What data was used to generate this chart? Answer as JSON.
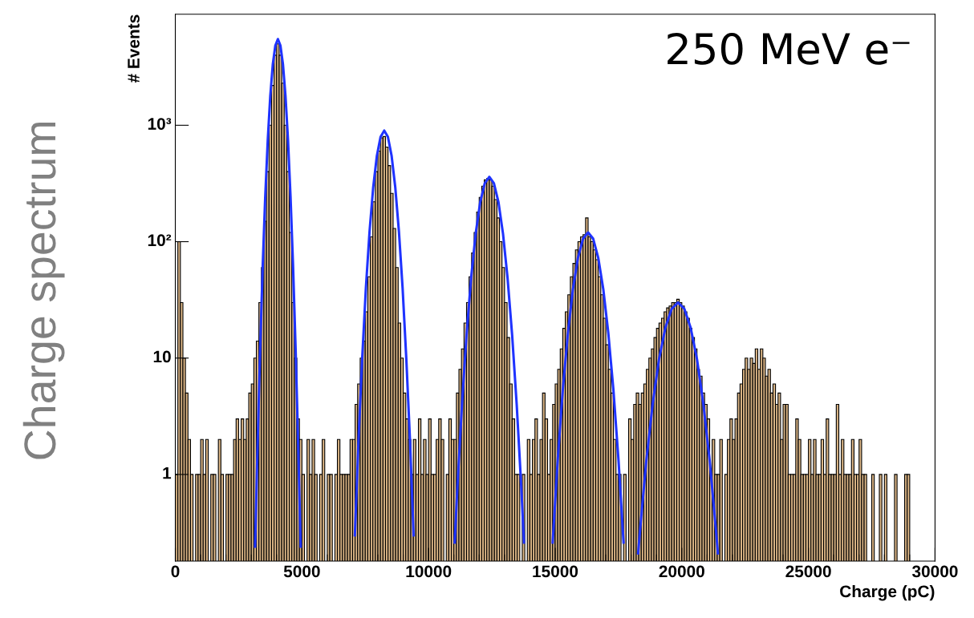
{
  "chart_data": {
    "type": "histogram",
    "title": "Charge spectrum",
    "xlabel": "Charge (pC)",
    "ylabel": "# Events",
    "annotations": [
      "250 MeV e⁻"
    ],
    "bins": [
      0,
      100,
      200,
      300,
      400,
      500,
      600,
      700,
      800,
      900,
      1000,
      1100,
      1200,
      1300,
      1400,
      1500,
      1600,
      1700,
      1800,
      1900,
      2000,
      2100,
      2200,
      2300,
      2400,
      2500,
      2600,
      2700,
      2800,
      2900,
      3000,
      3100,
      3200,
      3300,
      3400,
      3500,
      3600,
      3700,
      3800,
      3900,
      4000,
      4100,
      4200,
      4300,
      4400,
      4500,
      4600,
      4700,
      4800,
      4900,
      5000,
      5100,
      5200,
      5300,
      5400,
      5500,
      5600,
      5700,
      5800,
      5900,
      6000,
      6100,
      6200,
      6300,
      6400,
      6500,
      6600,
      6700,
      6800,
      6900,
      7000,
      7100,
      7200,
      7300,
      7400,
      7500,
      7600,
      7700,
      7800,
      7900,
      8000,
      8100,
      8200,
      8300,
      8400,
      8500,
      8600,
      8700,
      8800,
      8900,
      9000,
      9100,
      9200,
      9300,
      9400,
      9500,
      9600,
      9700,
      9800,
      9900,
      10000,
      10100,
      10200,
      10300,
      10400,
      10500,
      10600,
      10700,
      10800,
      10900,
      11000,
      11100,
      11200,
      11300,
      11400,
      11500,
      11600,
      11700,
      11800,
      11900,
      12000,
      12100,
      12200,
      12300,
      12400,
      12500,
      12600,
      12700,
      12800,
      12900,
      13000,
      13100,
      13200,
      13300,
      13400,
      13500,
      13600,
      13700,
      13800,
      13900,
      14000,
      14100,
      14200,
      14300,
      14400,
      14500,
      14600,
      14700,
      14800,
      14900,
      15000,
      15100,
      15200,
      15300,
      15400,
      15500,
      15600,
      15700,
      15800,
      15900,
      16000,
      16100,
      16200,
      16300,
      16400,
      16500,
      16600,
      16700,
      16800,
      16900,
      17000,
      17100,
      17200,
      17300,
      17400,
      17500,
      17600,
      17700,
      17800,
      17900,
      18000,
      18100,
      18200,
      18300,
      18400,
      18500,
      18600,
      18700,
      18800,
      18900,
      19000,
      19100,
      19200,
      19300,
      19400,
      19500,
      19600,
      19700,
      19800,
      19900,
      20000,
      20100,
      20200,
      20300,
      20400,
      20500,
      20600,
      20700,
      20800,
      20900,
      21000,
      21100,
      21200,
      21300,
      21400,
      21500,
      21600,
      21700,
      21800,
      21900,
      22000,
      22100,
      22200,
      22300,
      22400,
      22500,
      22600,
      22700,
      22800,
      22900,
      23000,
      23100,
      23200,
      23300,
      23400,
      23500,
      23600,
      23700,
      23800,
      23900,
      24000,
      24100,
      24200,
      24300,
      24400,
      24500,
      24600,
      24700,
      24800,
      24900,
      25000,
      25100,
      25200,
      25300,
      25400,
      25500,
      25600,
      25700,
      25800,
      25900,
      26000,
      26100,
      26200,
      26300,
      26400,
      26500,
      26600,
      26700,
      26800,
      26900,
      27000,
      27100,
      27200,
      27300,
      27400,
      27500,
      27600,
      27700,
      27800,
      27900,
      28000,
      28100,
      28200,
      28300,
      28400,
      28500,
      28600,
      28700,
      28800,
      28900,
      29000
    ],
    "values": [
      1,
      100,
      30,
      10,
      5,
      2,
      1,
      null,
      1,
      1,
      2,
      1,
      2,
      null,
      1,
      1,
      null,
      2,
      1,
      null,
      1,
      1,
      1,
      2,
      3,
      2,
      3,
      2,
      3,
      5,
      6,
      10,
      14,
      30,
      60,
      150,
      400,
      1000,
      2200,
      4000,
      5000,
      4000,
      2300,
      1000,
      400,
      120,
      30,
      10,
      3,
      2,
      1,
      null,
      2,
      1,
      2,
      1,
      null,
      1,
      2,
      null,
      1,
      1,
      null,
      1,
      2,
      1,
      1,
      1,
      1,
      2,
      2,
      4,
      6,
      10,
      14,
      25,
      50,
      110,
      220,
      400,
      600,
      780,
      800,
      650,
      450,
      260,
      130,
      60,
      20,
      10,
      5,
      3,
      2,
      1,
      2,
      1,
      3,
      1,
      2,
      1,
      3,
      1,
      1,
      2,
      3,
      2,
      null,
      1,
      3,
      2,
      2,
      5,
      8,
      12,
      20,
      30,
      50,
      80,
      120,
      180,
      240,
      300,
      340,
      350,
      340,
      300,
      230,
      160,
      100,
      60,
      30,
      15,
      6,
      3,
      1,
      1,
      null,
      1,
      null,
      2,
      1,
      2,
      3,
      1,
      2,
      5,
      3,
      1,
      2,
      4,
      6,
      8,
      12,
      18,
      25,
      35,
      50,
      65,
      85,
      100,
      110,
      115,
      160,
      110,
      100,
      85,
      70,
      50,
      35,
      22,
      13,
      8,
      5,
      2,
      1,
      1,
      null,
      1,
      null,
      3,
      2,
      4,
      5,
      4,
      5,
      6,
      8,
      10,
      12,
      15,
      18,
      20,
      22,
      25,
      27,
      28,
      30,
      30,
      32,
      30,
      28,
      25,
      22,
      18,
      15,
      12,
      8,
      7,
      5,
      4,
      3,
      1,
      2,
      1,
      1,
      2,
      null,
      1,
      2,
      3,
      2,
      3,
      5,
      6,
      8,
      10,
      8,
      10,
      9,
      12,
      8,
      12,
      10,
      7,
      8,
      5,
      6,
      4,
      5,
      2,
      4,
      4,
      1,
      1,
      1,
      3,
      2,
      1,
      1,
      1,
      2,
      1,
      2,
      1,
      1,
      2,
      1,
      3,
      1,
      1,
      1,
      4,
      1,
      2,
      1,
      1,
      1,
      2,
      1,
      1,
      2,
      1,
      1,
      null,
      null,
      1,
      null,
      null,
      1,
      null,
      1,
      null,
      null,
      null,
      1,
      null,
      null,
      null,
      1,
      1
    ],
    "color": "#dbb585",
    "series": [
      {
        "type": "line",
        "color": "#1f33ff",
        "x": [
          3150,
          3250,
          3350,
          3450,
          3550,
          3650,
          3750,
          3850,
          3950,
          4050,
          4150,
          4250,
          4350,
          4450,
          4550,
          4650,
          4750,
          4850,
          4950
        ],
        "values": [
          0.24,
          1.84,
          12,
          61,
          241,
          744,
          1790,
          3340,
          4850,
          5500,
          4850,
          3340,
          1790,
          744,
          241,
          61,
          12,
          1.84,
          0.24
        ]
      },
      {
        "type": "line",
        "color": "#1f33ff",
        "x": [
          7090,
          7235,
          7380,
          7525,
          7670,
          7815,
          7960,
          8105,
          8250,
          8395,
          8540,
          8685,
          8830,
          8975,
          9120,
          9265,
          9410
        ],
        "values": [
          0.3,
          2,
          10,
          40,
          122,
          294,
          548,
          795,
          900,
          795,
          548,
          294,
          122,
          40,
          10,
          2,
          0.3
        ]
      },
      {
        "type": "line",
        "color": "#1f33ff",
        "x": [
          11032,
          11140,
          11320,
          11500,
          11680,
          11860,
          12040,
          12220,
          12400,
          12580,
          12760,
          12940,
          13120,
          13300,
          13480,
          13660,
          13768
        ],
        "values": [
          0.26,
          0.79,
          4.0,
          15.8,
          48.6,
          117,
          219,
          318,
          360,
          318,
          219,
          117,
          48.6,
          15.8,
          4.0,
          0.79,
          0.26
        ]
      },
      {
        "type": "line",
        "color": "#1f33ff",
        "x": [
          14900,
          15100,
          15300,
          15500,
          15700,
          15900,
          16100,
          16300,
          16500,
          16700,
          16900,
          17100,
          17300,
          17500,
          17700
        ],
        "values": [
          0.26,
          1.33,
          5.3,
          16.2,
          39,
          72.8,
          106,
          120,
          106,
          72.8,
          39,
          16.2,
          5.3,
          1.33,
          0.26
        ]
      },
      {
        "type": "line",
        "color": "#1f33ff",
        "x": [
          18275,
          18350,
          18600,
          18850,
          19100,
          19350,
          19600,
          19850,
          20100,
          20350,
          20600,
          20850,
          21100,
          21350,
          21425
        ],
        "values": [
          0.21,
          0.33,
          1.32,
          4.05,
          9.75,
          18.2,
          26.5,
          30,
          26.5,
          18.2,
          9.75,
          4.05,
          1.32,
          0.33,
          0.21
        ]
      }
    ],
    "log": "y",
    "grid": false,
    "xlim": [
      0,
      30000
    ],
    "xticks": [
      0,
      5000,
      10000,
      15000,
      20000,
      25000,
      30000
    ],
    "ylim": [
      0.18,
      9000
    ],
    "yticks": [
      1,
      10,
      {
        "value": 100,
        "label": "10²"
      },
      {
        "value": 1000,
        "label": "10³"
      }
    ]
  }
}
